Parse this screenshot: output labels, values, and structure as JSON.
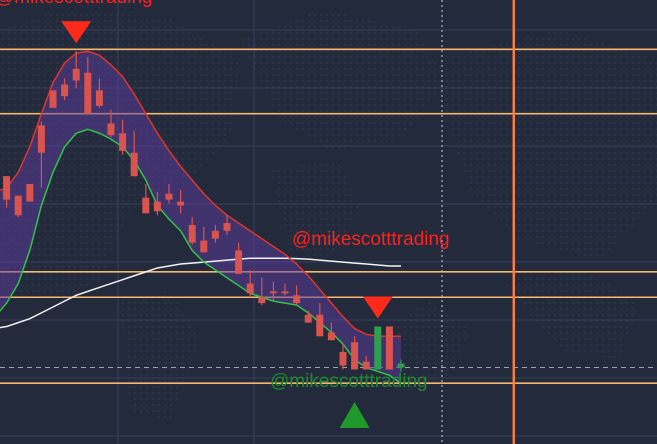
{
  "watermark": {
    "label_top": "@mikescotttrading",
    "label_mid": "@mikescotttrading",
    "label_bottom": "@mikescotttrading"
  },
  "colors": {
    "background": "#232a3b",
    "bull": "#2e9e4f",
    "bear": "#d9534f",
    "upper_band": "#e0352b",
    "lower_band": "#33c24a",
    "moving_average": "#f2f2f2",
    "band_fill": "#5b3aa0",
    "horizontal_level": "#f5b870",
    "vertical_marker": "#ff7a3c",
    "signal_down": "#ff2a1a",
    "signal_up": "#1f9a2a",
    "watermark_red": "#ff2020",
    "watermark_green": "#1e8a2a"
  },
  "icons": [
    "arrow-down-icon",
    "arrow-down-icon",
    "arrow-up-icon"
  ],
  "chart_data": {
    "type": "candlestick",
    "series": [
      {
        "name": "",
        "values": [
          {
            "o": 0.31,
            "h": 0.23,
            "l": 0.1,
            "c": 0.16
          },
          {
            "o": 0.2,
            "h": 0.12,
            "l": 0.04,
            "c": 0.08
          },
          {
            "o": 0.1,
            "h": 0.01,
            "l": -0.01,
            "c": 0.0
          },
          {
            "o": 0.16,
            "h": 0.03,
            "l": 0.16,
            "c": 0.07
          },
          {
            "o": 0.46,
            "h": 0.48,
            "l": 0.14,
            "c": 0.32
          },
          {
            "o": 0.64,
            "h": 0.64,
            "l": 0.55,
            "c": 0.55
          },
          {
            "o": 0.67,
            "h": 0.7,
            "l": 0.59,
            "c": 0.61
          },
          {
            "o": 0.75,
            "h": 0.84,
            "l": 0.65,
            "c": 0.69
          },
          {
            "o": 0.73,
            "h": 0.81,
            "l": 0.58,
            "c": 0.52
          },
          {
            "o": 0.64,
            "h": 0.7,
            "l": 0.55,
            "c": 0.56
          },
          {
            "o": 0.47,
            "h": 0.54,
            "l": 0.4,
            "c": 0.41
          },
          {
            "o": 0.42,
            "h": 0.49,
            "l": 0.31,
            "c": 0.33
          },
          {
            "o": 0.32,
            "h": 0.43,
            "l": 0.24,
            "c": 0.2
          },
          {
            "o": 0.09,
            "h": 0.16,
            "l": 0.04,
            "c": 0.01
          },
          {
            "o": 0.07,
            "h": 0.12,
            "l": 0.0,
            "c": 0.02
          },
          {
            "o": 0.11,
            "h": 0.16,
            "l": 0.06,
            "c": 0.08
          },
          {
            "o": 0.07,
            "h": 0.13,
            "l": 0.01,
            "c": 0.05
          },
          {
            "o": -0.05,
            "h": -0.01,
            "l": -0.15,
            "c": -0.14
          },
          {
            "o": -0.13,
            "h": -0.06,
            "l": -0.19,
            "c": -0.19
          },
          {
            "o": -0.08,
            "h": -0.05,
            "l": -0.14,
            "c": -0.12
          },
          {
            "o": -0.04,
            "h": 0.0,
            "l": -0.1,
            "c": -0.08
          },
          {
            "o": -0.18,
            "h": -0.14,
            "l": -0.3,
            "c": -0.3
          },
          {
            "o": -0.35,
            "h": -0.28,
            "l": -0.42,
            "c": -0.4
          },
          {
            "o": -0.42,
            "h": -0.32,
            "l": -0.46,
            "c": -0.45
          },
          {
            "o": -0.39,
            "h": -0.34,
            "l": -0.44,
            "c": -0.4
          },
          {
            "o": -0.39,
            "h": -0.35,
            "l": -0.41,
            "c": -0.4
          },
          {
            "o": -0.41,
            "h": -0.36,
            "l": -0.46,
            "c": -0.45
          },
          {
            "o": -0.51,
            "h": -0.49,
            "l": -0.55,
            "c": -0.55
          },
          {
            "o": -0.51,
            "h": -0.45,
            "l": -0.62,
            "c": -0.62
          },
          {
            "o": -0.6,
            "h": -0.55,
            "l": -0.64,
            "c": -0.64
          },
          {
            "o": -0.7,
            "h": -0.66,
            "l": -0.79,
            "c": -0.77
          },
          {
            "o": -0.65,
            "h": -0.62,
            "l": -0.79,
            "c": -0.79
          },
          {
            "o": -0.75,
            "h": -0.72,
            "l": -0.79,
            "c": -0.79
          },
          {
            "o": -0.79,
            "h": -0.57,
            "l": -0.79,
            "c": -0.57
          },
          {
            "o": -0.57,
            "h": -0.57,
            "l": -0.79,
            "c": -0.79
          },
          {
            "o": -0.78,
            "h": -0.74,
            "l": -0.8,
            "c": -0.76
          }
        ]
      }
    ],
    "bands": {
      "upper": [
        0.12,
        0.14,
        0.22,
        0.35,
        0.52,
        0.68,
        0.78,
        0.83,
        0.84,
        0.82,
        0.77,
        0.71,
        0.62,
        0.52,
        0.42,
        0.33,
        0.25,
        0.18,
        0.11,
        0.05,
        0.0,
        -0.04,
        -0.08,
        -0.12,
        -0.16,
        -0.2,
        -0.25,
        -0.31,
        -0.38,
        -0.45,
        -0.52,
        -0.58,
        -0.61,
        -0.62,
        -0.62,
        -0.62
      ],
      "lower": [
        -0.52,
        -0.45,
        -0.35,
        -0.18,
        0.05,
        0.22,
        0.35,
        0.42,
        0.44,
        0.42,
        0.39,
        0.35,
        0.28,
        0.18,
        0.05,
        -0.02,
        -0.08,
        -0.18,
        -0.24,
        -0.28,
        -0.32,
        -0.36,
        -0.4,
        -0.42,
        -0.44,
        -0.45,
        -0.46,
        -0.5,
        -0.55,
        -0.6,
        -0.66,
        -0.74,
        -0.78,
        -0.8,
        -0.82,
        -0.86
      ],
      "moving_average": [
        -0.58,
        -0.57,
        -0.55,
        -0.53,
        -0.5,
        -0.47,
        -0.44,
        -0.41,
        -0.39,
        -0.37,
        -0.35,
        -0.33,
        -0.31,
        -0.29,
        -0.27,
        -0.26,
        -0.25,
        -0.245,
        -0.24,
        -0.235,
        -0.23,
        -0.225,
        -0.22,
        -0.22,
        -0.22,
        -0.22,
        -0.222,
        -0.225,
        -0.23,
        -0.235,
        -0.24,
        -0.245,
        -0.25,
        -0.255,
        -0.26,
        -0.26
      ]
    },
    "horizontal_levels": [
      0.85,
      0.52,
      -0.29,
      -0.42,
      -0.86
    ],
    "vertical_markers": [
      38
    ],
    "signals": [
      {
        "type": "sell",
        "bar": 7
      },
      {
        "type": "sell",
        "bar": 33
      },
      {
        "type": "buy",
        "bar": 31
      }
    ],
    "ylim": [
      -1.1,
      1.0
    ],
    "grid": true,
    "legend": "none"
  }
}
